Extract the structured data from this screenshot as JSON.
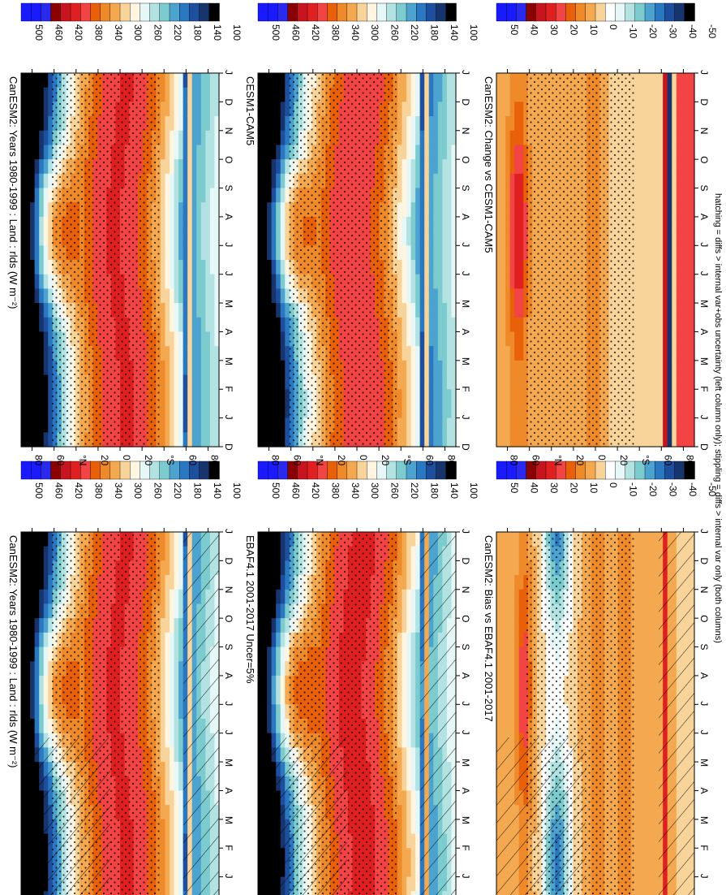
{
  "footnote": "hatching = diffs > internal var+obs uncertainty (left column only); stippling = diffs > internal var only (both columns)",
  "palettes": {
    "absolute": [
      "#1a1aff",
      "#1a1aff",
      "#2a2aee",
      "#8b0000",
      "#c8141e",
      "#e02020",
      "#f24444",
      "#e8600a",
      "#ef8a2a",
      "#f4a950",
      "#f8d39a",
      "#fff5e0",
      "#e6f7f7",
      "#b2e2e2",
      "#7ccbcf",
      "#4ca3cf",
      "#2b78c2",
      "#1d4f9e",
      "#17346c",
      "#000000"
    ],
    "difference": [
      "#1a1aff",
      "#1a1aff",
      "#2a2aee",
      "#8b0000",
      "#c8141e",
      "#e02020",
      "#f24444",
      "#e8600a",
      "#ef8a2a",
      "#f4a950",
      "#f8d39a",
      "#ffffff",
      "#e6f7f7",
      "#b2e2e2",
      "#7ccbcf",
      "#4ca3cf",
      "#2b78c2",
      "#1d4f9e",
      "#17346c",
      "#000000"
    ]
  },
  "panels": [
    {
      "id": "a",
      "title": "CanESM2: Years 1980-1999 : Land : rlds (W m⁻²)",
      "kind": "absolute",
      "hatching": true,
      "stippling": true
    },
    {
      "id": "b",
      "title": "CanESM2: Years 1980-1999 : Land : rlds (W m⁻²)",
      "kind": "absolute",
      "hatching": false,
      "stippling": true
    },
    {
      "id": "c",
      "title": "EBAF4.1 2001-2017 Uncer=5%",
      "kind": "absolute",
      "hatching": true,
      "stippling": true
    },
    {
      "id": "d",
      "title": "CESM1-CAM5",
      "kind": "absolute",
      "hatching": false,
      "stippling": true
    },
    {
      "id": "e",
      "title": "CanESM2: Bias vs EBAF4.1 2001-2017",
      "kind": "difference",
      "hatching": true,
      "stippling": true
    },
    {
      "id": "f",
      "title": "CanESM2: Change vs CESM1-CAM5",
      "kind": "difference",
      "hatching": false,
      "stippling": true
    }
  ],
  "chart_data": {
    "type": "heatmap",
    "description_axes": "Zonal-mean land downward longwave radiation, month vs latitude",
    "x": [
      "D",
      "J",
      "F",
      "M",
      "A",
      "M",
      "J",
      "J",
      "A",
      "S",
      "O",
      "N",
      "D",
      "J"
    ],
    "y_tick_labels": [
      "80",
      "60",
      "°N",
      "20",
      "0",
      "20",
      "°S",
      "60",
      "80"
    ],
    "y_tick_values": [
      80,
      60,
      40,
      20,
      0,
      -20,
      -40,
      -60,
      -80
    ],
    "ylim": [
      -90,
      90
    ],
    "absolute_colorbar": {
      "labels": [
        "500",
        "460",
        "420",
        "380",
        "340",
        "300",
        "260",
        "220",
        "180",
        "140",
        "100"
      ],
      "range": [
        80,
        520
      ]
    },
    "difference_colorbar": {
      "labels": [
        "50",
        "40",
        "30",
        "20",
        "10",
        "0",
        "-10",
        "-20",
        "-30",
        "-40",
        "-50"
      ],
      "range": [
        -55,
        55
      ]
    },
    "units": "W m⁻²"
  }
}
